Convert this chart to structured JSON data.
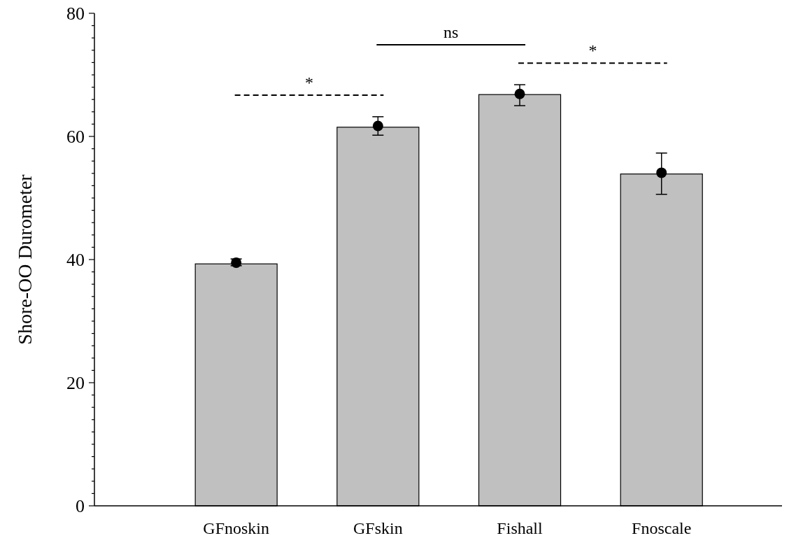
{
  "chart_data": {
    "type": "bar",
    "ylabel": "Shore-OO Durometer",
    "categories": [
      "GFnoskin",
      "GFskin",
      "Fishall",
      "Fnoscale"
    ],
    "series": [
      {
        "color": "#c0c0c0",
        "values": [
          39.3,
          61.5,
          66.8,
          53.9
        ]
      },
      {
        "type": "scatter",
        "color": "#000000",
        "x": [
          "GFnoskin",
          "GFskin",
          "Fishall",
          "Fnoscale"
        ],
        "values": [
          39.5,
          61.7,
          66.9,
          54.1
        ],
        "errors": [
          [
            39.0,
            40.1
          ],
          [
            60.2,
            63.2
          ],
          [
            65.0,
            68.4
          ],
          [
            50.6,
            57.3
          ]
        ],
        "marker": "circle"
      }
    ],
    "ylim": [
      0,
      80
    ],
    "yticks": [
      0,
      {
        "value": 2,
        "label": null
      },
      {
        "value": 4,
        "label": null
      },
      {
        "value": 6,
        "label": null
      },
      {
        "value": 8,
        "label": null
      },
      {
        "value": 10,
        "label": null
      },
      {
        "value": 12,
        "label": null
      },
      {
        "value": 14,
        "label": null
      },
      {
        "value": 16,
        "label": null
      },
      {
        "value": 18,
        "label": null
      },
      20,
      {
        "value": 22,
        "label": null
      },
      {
        "value": 24,
        "label": null
      },
      {
        "value": 26,
        "label": null
      },
      {
        "value": 28,
        "label": null
      },
      {
        "value": 30,
        "label": null
      },
      {
        "value": 32,
        "label": null
      },
      {
        "value": 34,
        "label": null
      },
      {
        "value": 36,
        "label": null
      },
      {
        "value": 38,
        "label": null
      },
      40,
      {
        "value": 42,
        "label": null
      },
      {
        "value": 44,
        "label": null
      },
      {
        "value": 46,
        "label": null
      },
      {
        "value": 48,
        "label": null
      },
      {
        "value": 50,
        "label": null
      },
      {
        "value": 52,
        "label": null
      },
      {
        "value": 54,
        "label": null
      },
      {
        "value": 56,
        "label": null
      },
      {
        "value": 58,
        "label": null
      },
      60,
      {
        "value": 62,
        "label": null
      },
      {
        "value": 64,
        "label": null
      },
      {
        "value": 66,
        "label": null
      },
      {
        "value": 68,
        "label": null
      },
      {
        "value": 70,
        "label": null
      },
      {
        "value": 72,
        "label": null
      },
      {
        "value": 74,
        "label": null
      },
      {
        "value": 76,
        "label": null
      },
      {
        "value": 78,
        "label": null
      },
      80
    ],
    "annotations": [
      "*",
      "ns",
      "*"
    ],
    "grid": false
  }
}
